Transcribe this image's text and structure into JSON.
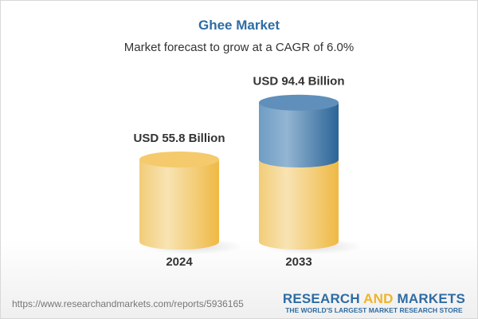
{
  "header": {
    "title": "Ghee Market",
    "subtitle": "Market forecast to grow at a CAGR of 6.0%"
  },
  "chart_data": {
    "type": "bar",
    "style": "3d-cylinder",
    "categories": [
      "2024",
      "2033"
    ],
    "values": [
      55.8,
      94.4
    ],
    "data_labels": [
      "USD 55.8 Billion",
      "USD 94.4 Billion"
    ],
    "unit": "USD Billion",
    "colors": {
      "base": "#f2c25a",
      "growth": "#3f7fb3"
    },
    "title": "Ghee Market",
    "subtitle": "Market forecast to grow at a CAGR of 6.0%"
  },
  "footer": {
    "url": "https://www.researchandmarkets.com/reports/5936165",
    "logo": {
      "part1": "RESEARCH ",
      "part2": "AND",
      "part3": " MARKETS",
      "tagline": "THE WORLD'S LARGEST MARKET RESEARCH STORE"
    }
  }
}
